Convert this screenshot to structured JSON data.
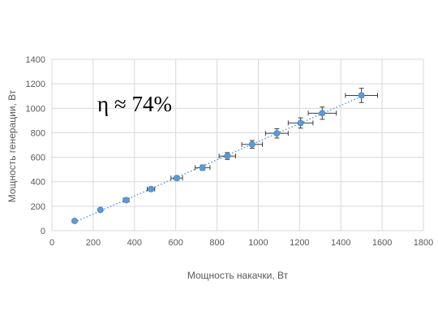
{
  "chart_data": {
    "type": "scatter",
    "title": "",
    "xlabel": "Мощность накачки, Вт",
    "ylabel": "Мощность генерации, Вт",
    "xlim": [
      0,
      1800
    ],
    "ylim": [
      0,
      1400
    ],
    "x_ticks": [
      0,
      200,
      400,
      600,
      800,
      1000,
      1200,
      1400,
      1600,
      1800
    ],
    "y_ticks": [
      0,
      200,
      400,
      600,
      800,
      1000,
      1200,
      1400
    ],
    "grid": "vertical and horizontal",
    "legend": "none",
    "annotation": "η ≈ 74%",
    "trendline": "linear, dotted",
    "marker_color": "#5B9BD5",
    "errorbar_color": "#404040",
    "series": [
      {
        "x": [
          110,
          235,
          360,
          480,
          605,
          730,
          850,
          970,
          1090,
          1205,
          1310,
          1500
        ],
        "y": [
          80,
          170,
          250,
          340,
          430,
          515,
          610,
          705,
          795,
          880,
          960,
          1105
        ],
        "x_err": [
          0,
          8,
          14,
          18,
          28,
          36,
          40,
          50,
          55,
          60,
          68,
          78
        ],
        "y_err": [
          0,
          8,
          12,
          16,
          18,
          22,
          28,
          32,
          38,
          42,
          50,
          58
        ]
      }
    ]
  }
}
